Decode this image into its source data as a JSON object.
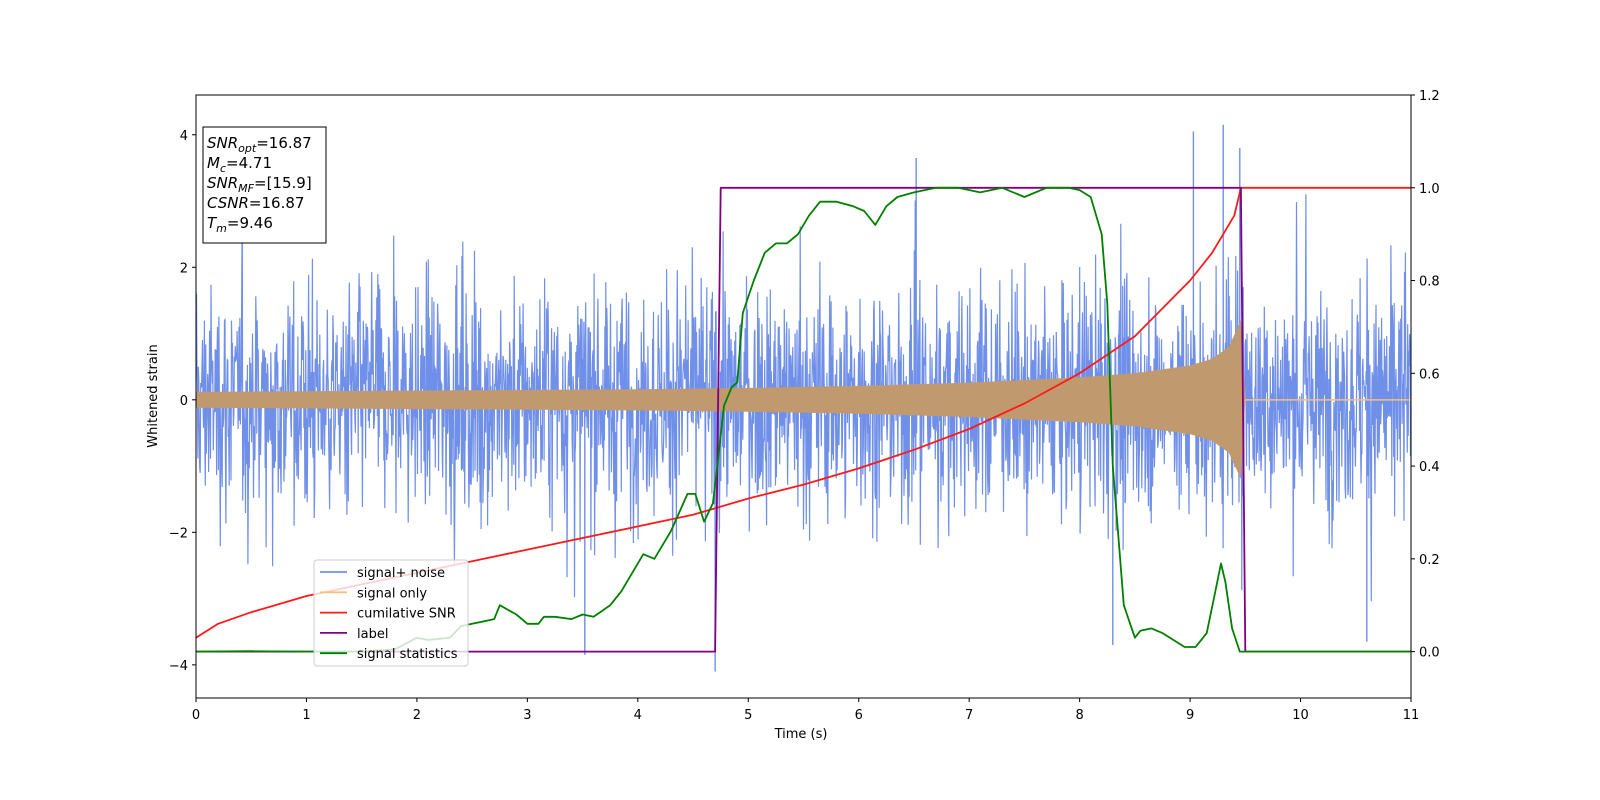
{
  "chart_data": {
    "type": "line",
    "xlabel": "Time (s)",
    "ylabel": "Whitened strain",
    "xlim": [
      0,
      11
    ],
    "ylim": [
      -4.5,
      4.6
    ],
    "y2lim": [
      -0.1,
      1.2
    ],
    "xticks": [
      "0",
      "1",
      "2",
      "3",
      "4",
      "5",
      "6",
      "7",
      "8",
      "9",
      "10",
      "11"
    ],
    "yticks": [
      "4",
      "2",
      "0",
      "−2",
      "−4"
    ],
    "y2ticks": [
      "1.2",
      "1.0",
      "0.8",
      "0.6",
      "0.4",
      "0.2",
      "0.0"
    ],
    "grid": false,
    "legend_placement": "lower-left",
    "colors": {
      "signal_noise": "#6f8fe8",
      "signal_only": "#f5c27a",
      "overlap": "#c09a6e",
      "cumulative_snr": "#ff1a1a",
      "label": "#800080",
      "signal_statistics": "#008000"
    },
    "annotation": {
      "lines": [
        {
          "var": "SNR",
          "sub": "opt",
          "value": "=16.87"
        },
        {
          "var": "M",
          "sub": "c",
          "value": "=4.71"
        },
        {
          "var": "SNR",
          "sub": "MF",
          "value": "=[15.9]"
        },
        {
          "var": "CSNR",
          "sub": "",
          "value": "=16.87"
        },
        {
          "var": "T",
          "sub": "m",
          "value": "=9.46"
        }
      ]
    },
    "series": [
      {
        "name": "signal+ noise",
        "axis": "left",
        "noise_band_ylim": [
          -2.0,
          2.0
        ],
        "notable_peaks": [
          {
            "x": 4.7,
            "y": -4.1
          },
          {
            "x": 9.3,
            "y": 4.15
          },
          {
            "x": 9.03,
            "y": 4.05
          },
          {
            "x": 9.45,
            "y": 3.8
          },
          {
            "x": 6.52,
            "y": 3.65
          },
          {
            "x": 8.3,
            "y": -3.7
          },
          {
            "x": 3.52,
            "y": -3.85
          },
          {
            "x": 10.6,
            "y": -3.65
          }
        ]
      },
      {
        "name": "signal only",
        "axis": "left",
        "envelope_x": [
          0,
          1,
          2,
          3,
          4,
          5,
          6,
          7,
          8,
          8.5,
          9,
          9.2,
          9.35,
          9.42,
          9.46,
          9.5,
          11
        ],
        "envelope_y": [
          0.12,
          0.13,
          0.14,
          0.15,
          0.16,
          0.18,
          0.21,
          0.26,
          0.34,
          0.4,
          0.52,
          0.62,
          0.8,
          1.05,
          1.2,
          0.0,
          0.0
        ]
      },
      {
        "name": "cumilative SNR",
        "axis": "right",
        "x": [
          0,
          0.2,
          0.5,
          1,
          1.5,
          2,
          2.5,
          3,
          3.5,
          4,
          4.5,
          5,
          5.5,
          6,
          6.5,
          7,
          7.5,
          8,
          8.5,
          9,
          9.2,
          9.4,
          9.46,
          11
        ],
        "y": [
          0.03,
          0.06,
          0.085,
          0.12,
          0.145,
          0.17,
          0.195,
          0.22,
          0.245,
          0.27,
          0.295,
          0.33,
          0.36,
          0.395,
          0.435,
          0.48,
          0.535,
          0.6,
          0.68,
          0.8,
          0.86,
          0.94,
          1.0,
          1.0
        ]
      },
      {
        "name": "label",
        "axis": "right",
        "x": [
          0,
          4.7,
          4.75,
          9.46,
          9.5,
          11
        ],
        "y": [
          0,
          0,
          1,
          1,
          0,
          0
        ]
      },
      {
        "name": "signal statistics",
        "axis": "right",
        "x": [
          0,
          0.5,
          1,
          1.5,
          1.8,
          2.0,
          2.1,
          2.3,
          2.4,
          2.5,
          2.6,
          2.7,
          2.75,
          2.9,
          3.0,
          3.1,
          3.15,
          3.25,
          3.4,
          3.5,
          3.6,
          3.75,
          3.85,
          3.95,
          4.05,
          4.15,
          4.3,
          4.45,
          4.52,
          4.6,
          4.68,
          4.72,
          4.78,
          4.85,
          4.9,
          4.95,
          5.05,
          5.15,
          5.25,
          5.35,
          5.45,
          5.55,
          5.65,
          5.8,
          5.95,
          6.05,
          6.15,
          6.25,
          6.35,
          6.5,
          6.7,
          6.9,
          7.1,
          7.3,
          7.5,
          7.7,
          7.8,
          7.9,
          8.0,
          8.1,
          8.2,
          8.25,
          8.3,
          8.4,
          8.5,
          8.55,
          8.65,
          8.75,
          8.85,
          8.95,
          9.05,
          9.15,
          9.22,
          9.28,
          9.32,
          9.38,
          9.45,
          9.5,
          11
        ],
        "y": [
          0.0,
          0.001,
          0.0,
          0.0,
          0.005,
          0.03,
          0.025,
          0.03,
          0.055,
          0.06,
          0.065,
          0.07,
          0.1,
          0.08,
          0.06,
          0.06,
          0.075,
          0.075,
          0.07,
          0.08,
          0.075,
          0.1,
          0.13,
          0.17,
          0.21,
          0.2,
          0.26,
          0.34,
          0.34,
          0.28,
          0.32,
          0.4,
          0.53,
          0.57,
          0.58,
          0.73,
          0.8,
          0.86,
          0.88,
          0.88,
          0.9,
          0.94,
          0.97,
          0.97,
          0.96,
          0.95,
          0.92,
          0.96,
          0.98,
          0.99,
          1.0,
          1.0,
          0.99,
          1.0,
          0.98,
          1.0,
          1.0,
          1.0,
          0.995,
          0.98,
          0.9,
          0.75,
          0.4,
          0.1,
          0.03,
          0.045,
          0.05,
          0.04,
          0.025,
          0.01,
          0.01,
          0.04,
          0.12,
          0.19,
          0.15,
          0.05,
          0.0,
          0.0,
          0.0
        ]
      }
    ]
  }
}
